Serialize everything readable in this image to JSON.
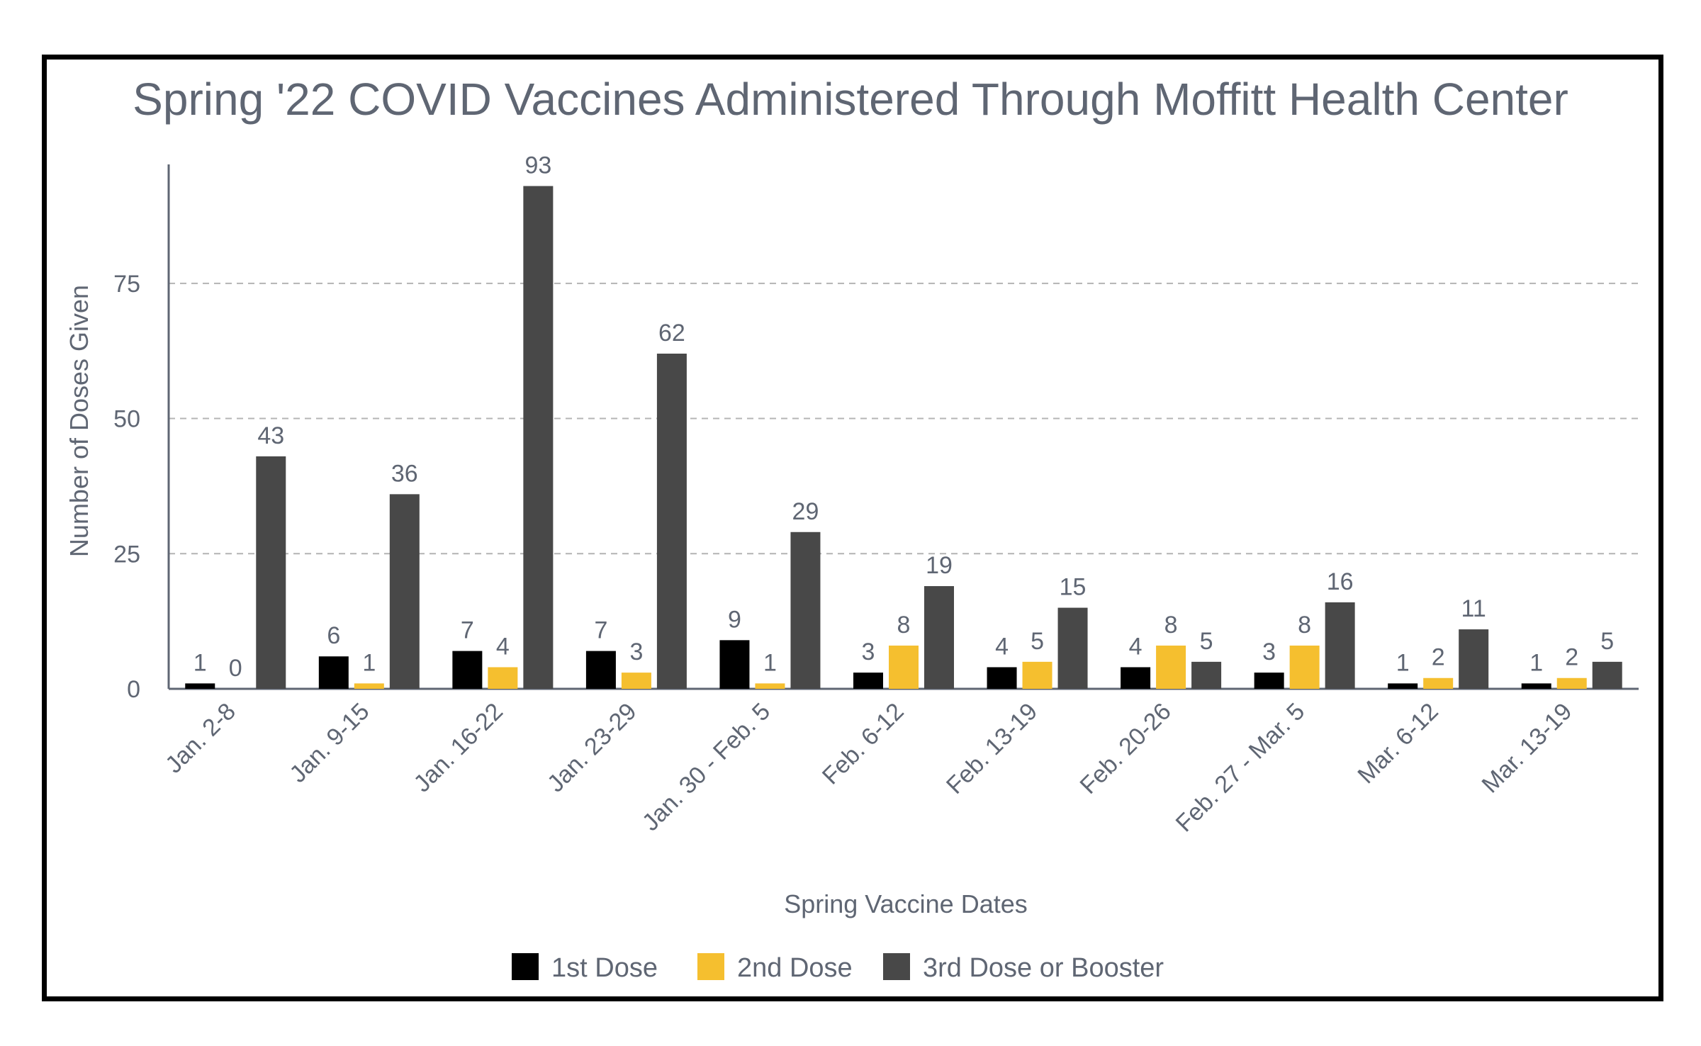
{
  "chart_data": {
    "type": "bar",
    "title": "Spring '22 COVID Vaccines Administered Through Moffitt Health Center",
    "xlabel": "Spring Vaccine Dates",
    "ylabel": "Number of Doses Given",
    "ylim": [
      0,
      97
    ],
    "yticks": [
      0,
      25,
      50,
      75
    ],
    "grid": "horizontal dashed",
    "legend_position": "bottom",
    "categories": [
      "Jan. 2-8",
      "Jan. 9-15",
      "Jan. 16-22",
      "Jan. 23-29",
      "Jan. 30 - Feb. 5",
      "Feb. 6-12",
      "Feb. 13-19",
      "Feb. 20-26",
      "Feb. 27 - Mar. 5",
      "Mar. 6-12",
      "Mar. 13-19"
    ],
    "series": [
      {
        "name": "1st Dose",
        "color": "#000000",
        "values": [
          1,
          6,
          7,
          7,
          9,
          3,
          4,
          4,
          3,
          1,
          1
        ]
      },
      {
        "name": "2nd Dose",
        "color": "#f5bf2f",
        "values": [
          0,
          1,
          4,
          3,
          1,
          8,
          5,
          8,
          8,
          2,
          2
        ]
      },
      {
        "name": "3rd Dose or Booster",
        "color": "#484848",
        "values": [
          43,
          36,
          93,
          62,
          29,
          19,
          15,
          5,
          16,
          11,
          5
        ]
      }
    ]
  }
}
